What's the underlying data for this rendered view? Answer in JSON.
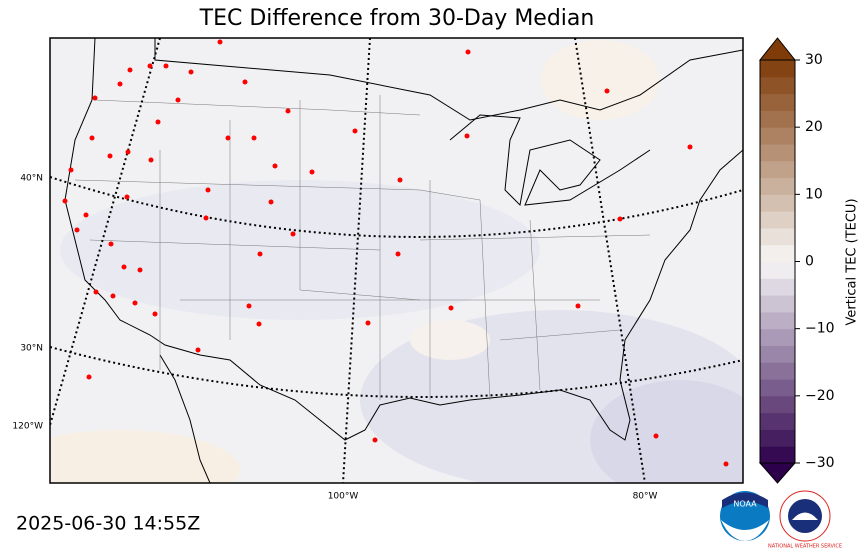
{
  "title": "TEC Difference from 30-Day Median",
  "timestamp": "2025-06-30 14:55Z",
  "map": {
    "lat_labels": [
      "40°N",
      "30°N"
    ],
    "lon_labels": [
      "120°W",
      "100°W",
      "80°W"
    ]
  },
  "colorbar": {
    "label": "Vertical TEC (TECU)",
    "lim": [
      -30,
      30
    ],
    "ticks": [
      {
        "value": -30,
        "label": "−30"
      },
      {
        "value": -20,
        "label": "−20"
      },
      {
        "value": -10,
        "label": "−10"
      },
      0,
      10,
      20,
      30
    ],
    "colors": [
      "#2d004b",
      "#f7f7f7",
      "#7f3b08"
    ]
  },
  "logos": {
    "noaa": "NOAA",
    "nws": "NATIONAL WEATHER SERVICE"
  }
}
